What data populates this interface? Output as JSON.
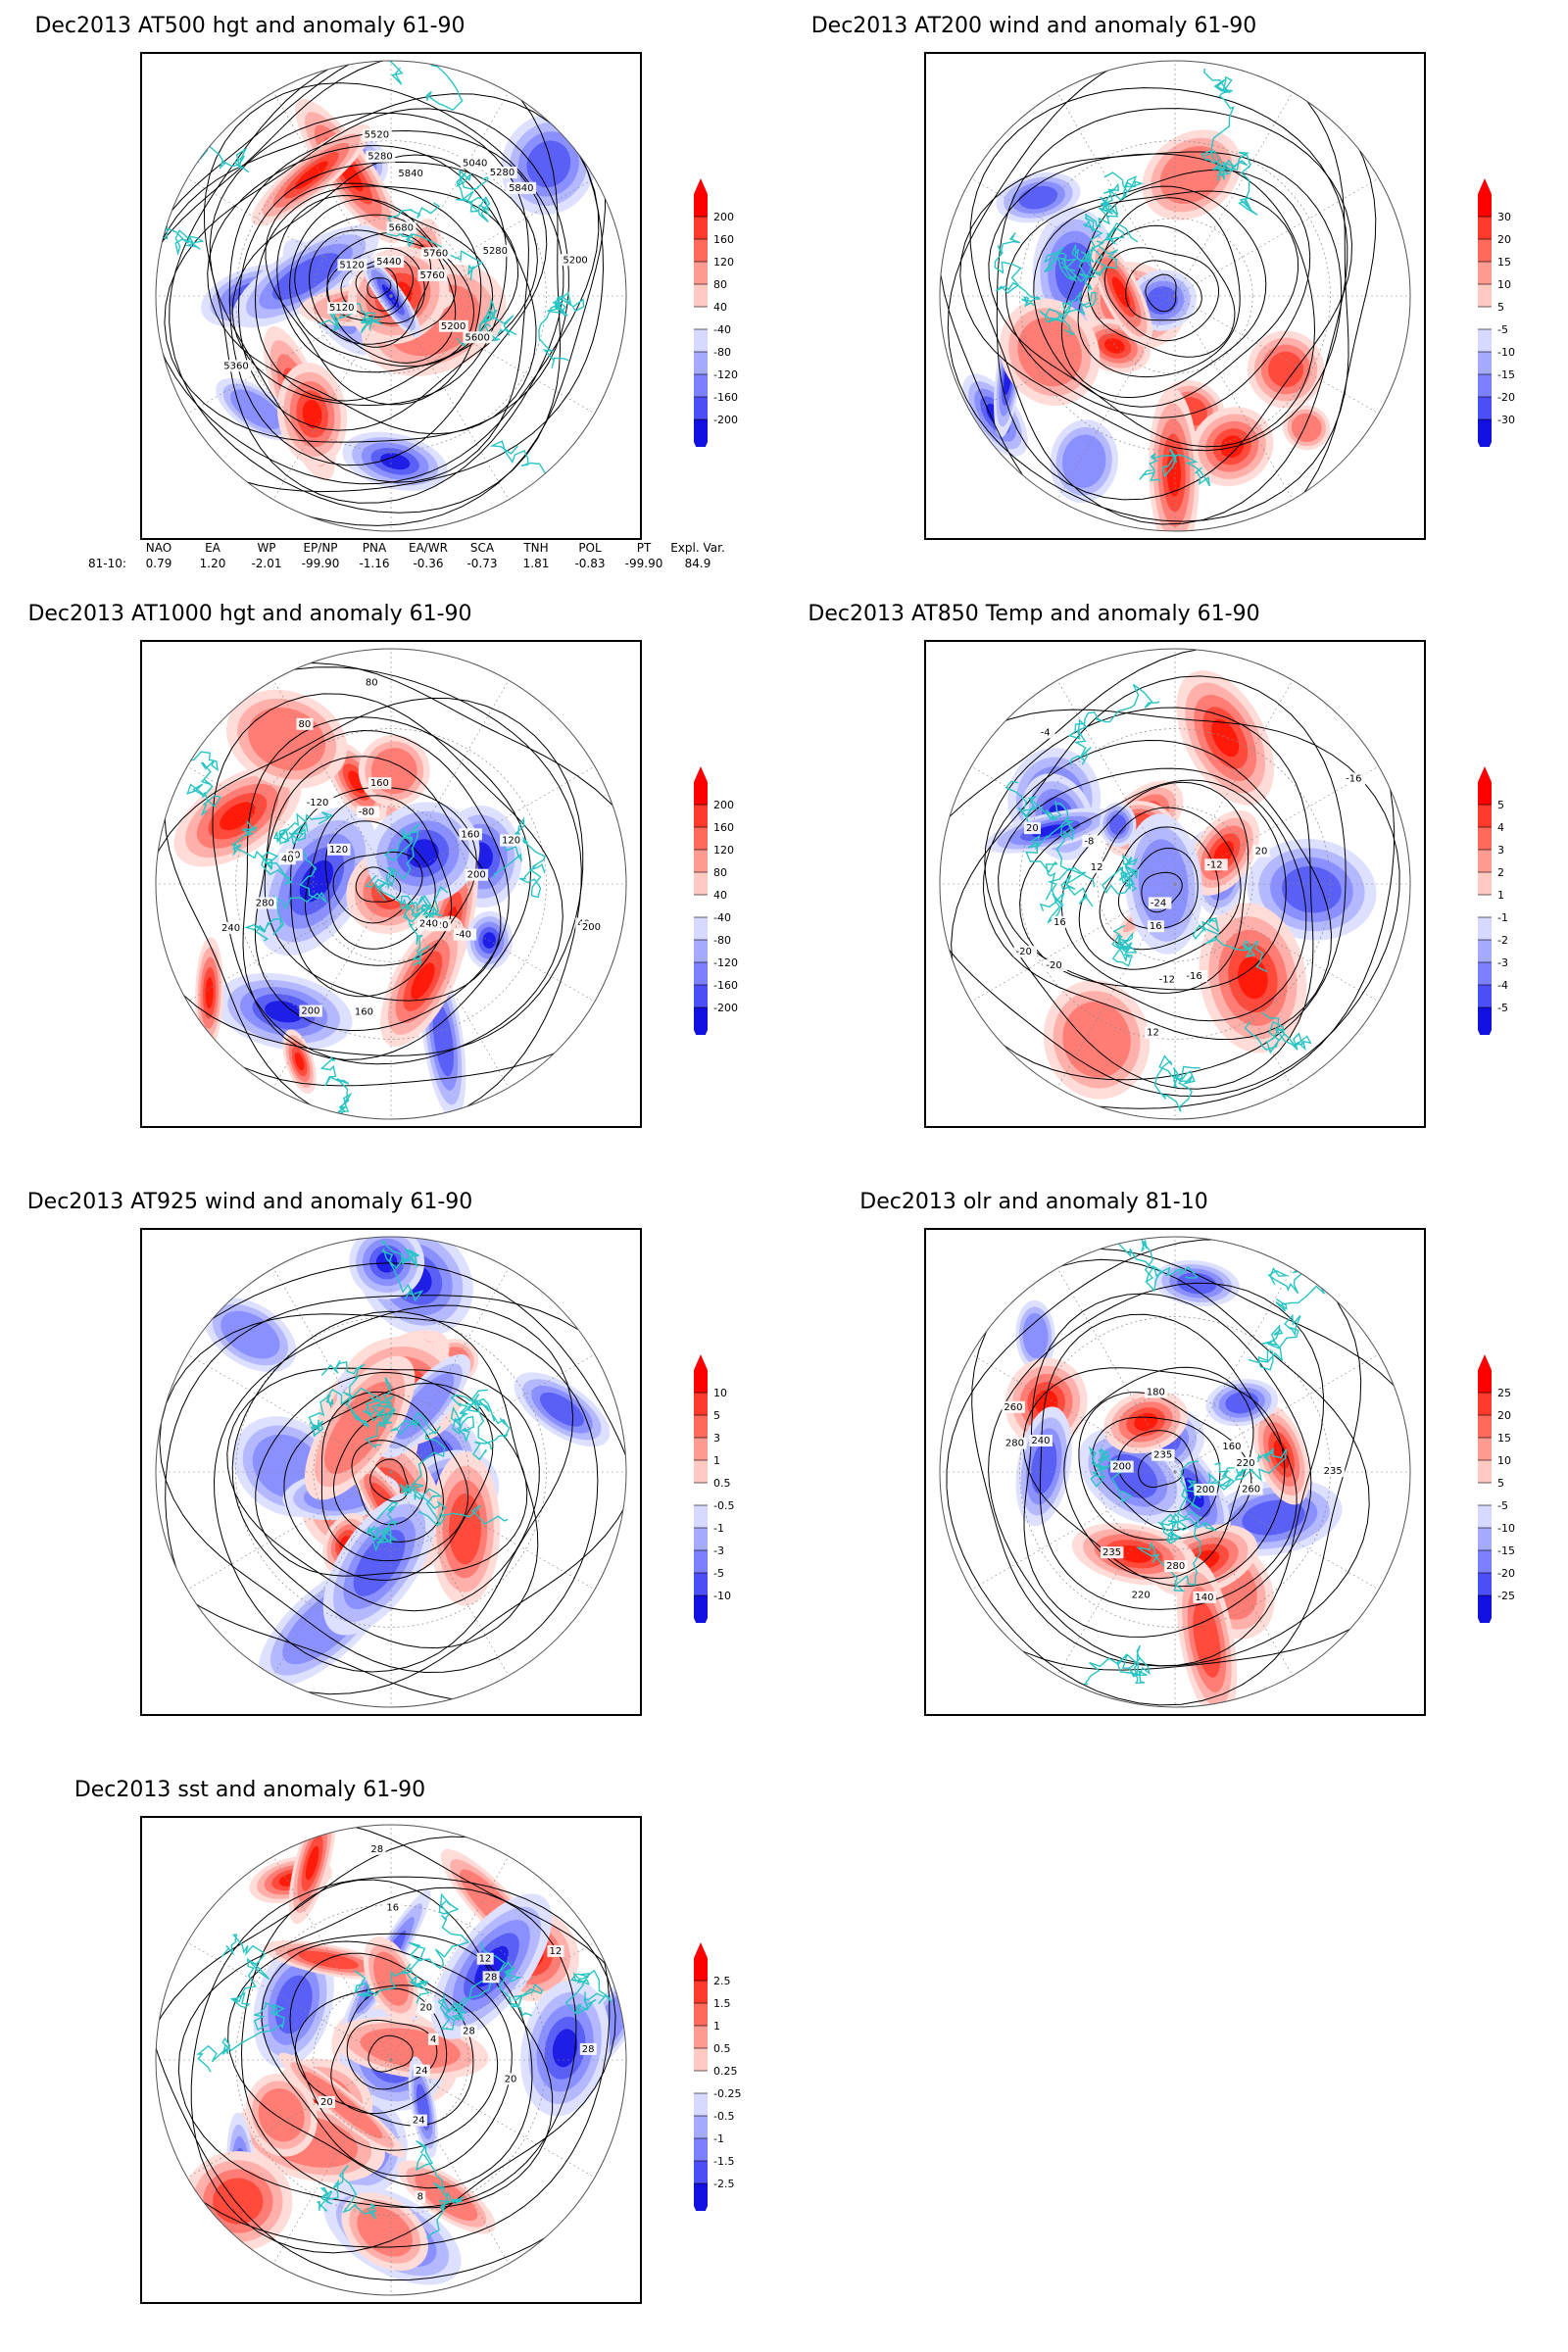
{
  "panels": [
    {
      "id": "p1",
      "title": "Dec2013 AT500 hgt and anomaly 61-90",
      "colorbar": [
        "200",
        "160",
        "120",
        "80",
        "40",
        "-40",
        "-80",
        "-120",
        "-160",
        "-200"
      ],
      "contour_labels": [
        "5840",
        "5760",
        "5360",
        "5280",
        "5200",
        "5280",
        "5200",
        "5120",
        "5040",
        "5120",
        "5280",
        "5440",
        "5520",
        "5600",
        "5680",
        "5760",
        "5840"
      ]
    },
    {
      "id": "p2",
      "title": "Dec2013 AT200 wind and anomaly 61-90",
      "colorbar": [
        "30",
        "20",
        "15",
        "10",
        "5",
        "-5",
        "-10",
        "-15",
        "-20",
        "-30"
      ],
      "contour_labels": []
    },
    {
      "id": "p3",
      "title": "Dec2013 AT1000 hgt and anomaly 61-90",
      "colorbar": [
        "200",
        "160",
        "120",
        "80",
        "40",
        "-40",
        "-80",
        "-120",
        "-160",
        "-200"
      ],
      "contour_labels": [
        "80",
        "120",
        "160",
        "240",
        "40",
        "80",
        "160",
        "200",
        "120",
        "200",
        "280",
        "240",
        "-40",
        "-80",
        "-120",
        "40",
        "200",
        "160",
        "120",
        "80"
      ]
    },
    {
      "id": "p4",
      "title": "Dec2013 AT850 Temp and anomaly 61-90",
      "colorbar": [
        "5",
        "4",
        "3",
        "2",
        "1",
        "-1",
        "-2",
        "-3",
        "-4",
        "-5"
      ],
      "contour_labels": [
        "-16",
        "-12",
        "-8",
        "-4",
        "12",
        "-12",
        "-16",
        "-20",
        "-24",
        "-20",
        "16",
        "12",
        "16",
        "20",
        "20"
      ]
    },
    {
      "id": "p5",
      "title": "Dec2013 AT925 wind and anomaly 61-90",
      "colorbar": [
        "10",
        "5",
        "3",
        "1",
        "0.5",
        "-0.5",
        "-1",
        "-3",
        "-5",
        "-10"
      ],
      "contour_labels": []
    },
    {
      "id": "p6",
      "title": "Dec2013 olr and anomaly 81-10",
      "colorbar": [
        "25",
        "20",
        "15",
        "10",
        "5",
        "-5",
        "-10",
        "-15",
        "-20",
        "-25"
      ],
      "contour_labels": [
        "235",
        "260",
        "280",
        "220",
        "200",
        "180",
        "160",
        "140",
        "235",
        "240",
        "260",
        "280",
        "200",
        "220",
        "235"
      ]
    },
    {
      "id": "p7",
      "title": "Dec2013 sst and anomaly 61-90",
      "colorbar": [
        "2.5",
        "1.5",
        "1",
        "0.5",
        "0.25",
        "-0.25",
        "-0.5",
        "-1",
        "-1.5",
        "-2.5"
      ],
      "contour_labels": [
        "28",
        "24",
        "20",
        "16",
        "12",
        "8",
        "4",
        "24",
        "28",
        "28",
        "20",
        "12",
        "28",
        "20"
      ]
    }
  ],
  "indices": {
    "headers": [
      "NAO",
      "EA",
      "WP",
      "EP/NP",
      "PNA",
      "EA/WR",
      "SCA",
      "TNH",
      "POL",
      "PT",
      "Expl. Var."
    ],
    "row_label": "81-10:",
    "values": [
      "0.79",
      "1.20",
      "-2.01",
      "-99.90",
      "-1.16",
      "-0.36",
      "-0.73",
      "1.81",
      "-0.83",
      "-99.90",
      "84.9"
    ]
  },
  "colors": {
    "land_outline": "#29c4c4",
    "positive": "#e8140f",
    "negative": "#1e1ee6",
    "contour": "#000000"
  }
}
